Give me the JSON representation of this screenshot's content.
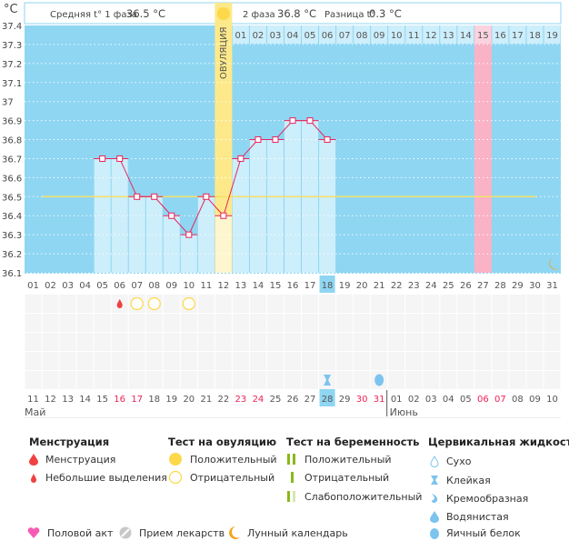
{
  "header": {
    "unit": "°C",
    "phase1_label": "Средняя t° 1 фаза",
    "phase1_value": "36.5 °C",
    "phase2_label": "2 фаза",
    "phase2_value": "36.8 °C",
    "diff_label": "Разница t°",
    "diff_value": "0.3 °C",
    "ovulation_label": "ОВУЛЯЦИЯ"
  },
  "chart_data": {
    "type": "line",
    "ylim": [
      36.1,
      37.4
    ],
    "yticks": [
      "37.4",
      "37.3",
      "37.2",
      "37.1",
      "37",
      "36.9",
      "36.8",
      "36.7",
      "36.6",
      "36.5",
      "36.4",
      "36.3",
      "36.2",
      "36.1"
    ],
    "cycle_days": [
      "01",
      "02",
      "03",
      "04",
      "05",
      "06",
      "07",
      "08",
      "09",
      "10",
      "11",
      "12",
      "13",
      "14",
      "15",
      "16",
      "17",
      "18",
      "19",
      "20",
      "21",
      "22",
      "23",
      "24",
      "25",
      "26",
      "27",
      "28",
      "29",
      "30",
      "31"
    ],
    "temperatures": [
      null,
      null,
      null,
      null,
      36.7,
      36.7,
      36.5,
      36.5,
      36.4,
      36.3,
      36.5,
      36.4,
      36.7,
      36.8,
      36.8,
      36.9,
      36.9,
      36.8,
      null,
      null,
      null,
      null,
      null,
      null,
      null,
      null,
      null,
      null,
      null,
      null,
      null
    ],
    "coverline": 36.5,
    "ovulation_day": 12,
    "highlight_day": 27,
    "current_day": 18,
    "luteal_days": [
      "01",
      "02",
      "03",
      "04",
      "05",
      "06",
      "07",
      "08",
      "09",
      "10",
      "11",
      "12",
      "13",
      "14",
      "15",
      "16",
      "17",
      "18",
      "19"
    ],
    "luteal_highlight": "15",
    "moon_day": 31,
    "grid": true
  },
  "calendar": {
    "dates": [
      "11",
      "12",
      "13",
      "14",
      "15",
      "16",
      "17",
      "18",
      "19",
      "20",
      "21",
      "22",
      "23",
      "24",
      "25",
      "26",
      "27",
      "28",
      "29",
      "30",
      "31",
      "01",
      "02",
      "03",
      "04",
      "05",
      "06",
      "07",
      "08",
      "09",
      "10"
    ],
    "weekend_idx": [
      5,
      6,
      12,
      13,
      19,
      20,
      26,
      27
    ],
    "today_idx": 17,
    "month1": "Май",
    "month2": "Июнь",
    "month2_start_idx": 21,
    "colors": {
      "weekend": "#ee2255",
      "normal": "#555555",
      "accent": "#8fd6f2"
    }
  },
  "markers": [
    {
      "day": 6,
      "row": 0,
      "icon": "spotting-drop-icon"
    },
    {
      "day": 7,
      "row": 0,
      "icon": "ovulation-test-negative-icon"
    },
    {
      "day": 8,
      "row": 0,
      "icon": "ovulation-test-negative-icon"
    },
    {
      "day": 10,
      "row": 0,
      "icon": "ovulation-test-negative-icon"
    },
    {
      "day": 18,
      "row": 4,
      "icon": "sticky-icon"
    },
    {
      "day": 21,
      "row": 4,
      "icon": "egg-white-icon"
    }
  ],
  "legend": {
    "menstruation": {
      "title": "Менструация",
      "items": [
        "Менструация",
        "Небольшие выделения"
      ]
    },
    "ovulation_test": {
      "title": "Тест на овуляцию",
      "items": [
        "Положительный",
        "Отрицательный"
      ]
    },
    "pregnancy_test": {
      "title": "Тест на беременность",
      "items": [
        "Положительный",
        "Отрицательный",
        "Слабоположительный"
      ]
    },
    "cervical": {
      "title": "Цервикальная жидкость",
      "items": [
        "Сухо",
        "Клейкая",
        "Кремообразная",
        "Водянистая",
        "Яичный белок"
      ]
    },
    "other": [
      "Половой акт",
      "Прием лекарств",
      "Лунный календарь"
    ]
  }
}
